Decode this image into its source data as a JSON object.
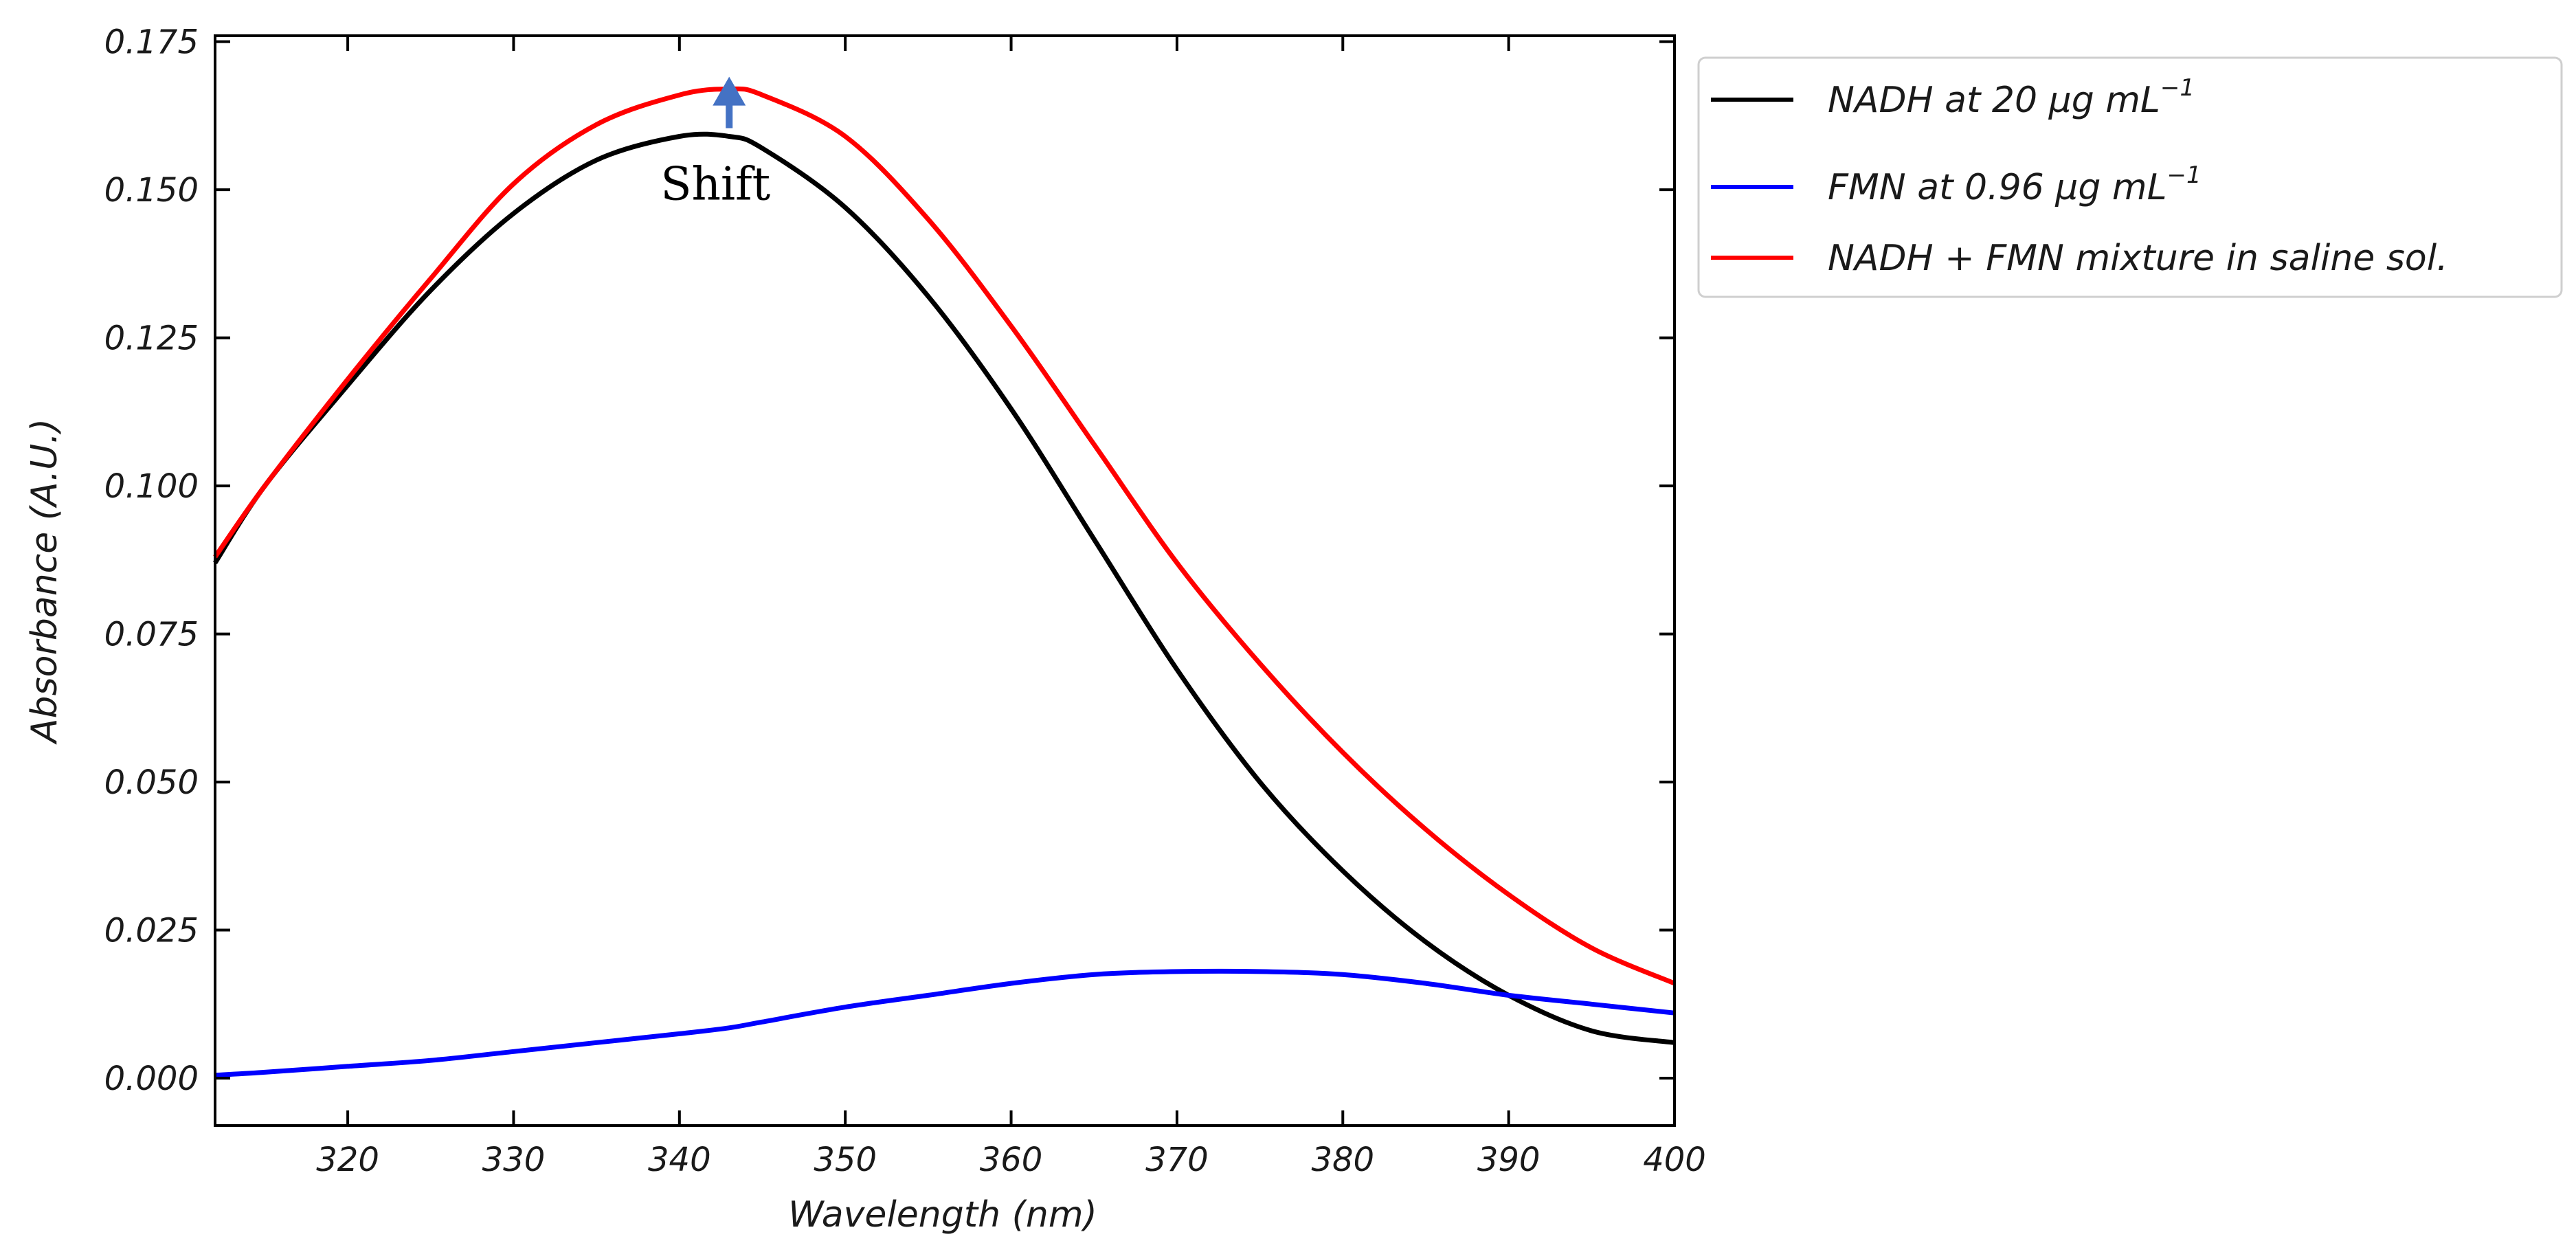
{
  "chart_data": {
    "type": "line",
    "title": "",
    "xlabel": "Wavelength (nm)",
    "ylabel": "Absorbance (A.U.)",
    "xlim": [
      312,
      400
    ],
    "ylim": [
      -0.008,
      0.176
    ],
    "grid": false,
    "legend_position": "outside-top-right",
    "xticks": [
      320,
      330,
      340,
      350,
      360,
      370,
      380,
      390,
      400
    ],
    "xtick_labels": [
      "320",
      "330",
      "340",
      "350",
      "360",
      "370",
      "380",
      "390",
      "400"
    ],
    "yticks": [
      0.0,
      0.025,
      0.05,
      0.075,
      0.1,
      0.125,
      0.15,
      0.175
    ],
    "ytick_labels": [
      "0.000",
      "0.025",
      "0.050",
      "0.075",
      "0.100",
      "0.125",
      "0.150",
      "0.175"
    ],
    "x": [
      312,
      315,
      320,
      325,
      330,
      335,
      340,
      343,
      345,
      350,
      355,
      360,
      365,
      370,
      375,
      380,
      385,
      390,
      395,
      400
    ],
    "series": [
      {
        "name": "NADH at 20 μg mL",
        "superscript": "−1",
        "color": "#000000",
        "values": [
          0.087,
          0.1,
          0.117,
          0.133,
          0.146,
          0.155,
          0.159,
          0.159,
          0.157,
          0.147,
          0.132,
          0.113,
          0.091,
          0.069,
          0.05,
          0.035,
          0.023,
          0.014,
          0.008,
          0.006
        ]
      },
      {
        "name": "FMN at 0.96 μg mL",
        "superscript": "−1",
        "color": "#0000ff",
        "values": [
          0.0005,
          0.001,
          0.002,
          0.003,
          0.0045,
          0.006,
          0.0075,
          0.0085,
          0.0095,
          0.012,
          0.014,
          0.016,
          0.0175,
          0.018,
          0.018,
          0.0175,
          0.016,
          0.014,
          0.0125,
          0.011
        ]
      },
      {
        "name": "NADH + FMN mixture in saline sol.",
        "superscript": "",
        "color": "#ff0000",
        "values": [
          0.088,
          0.1,
          0.118,
          0.135,
          0.151,
          0.161,
          0.166,
          0.167,
          0.166,
          0.159,
          0.145,
          0.127,
          0.107,
          0.087,
          0.07,
          0.055,
          0.042,
          0.031,
          0.022,
          0.016
        ]
      }
    ],
    "annotations": [
      {
        "text": "Shift",
        "arrow_color": "#4472c4",
        "arrow_x": 343,
        "arrow_y_from": 0.159,
        "arrow_y_to": 0.167
      }
    ]
  }
}
